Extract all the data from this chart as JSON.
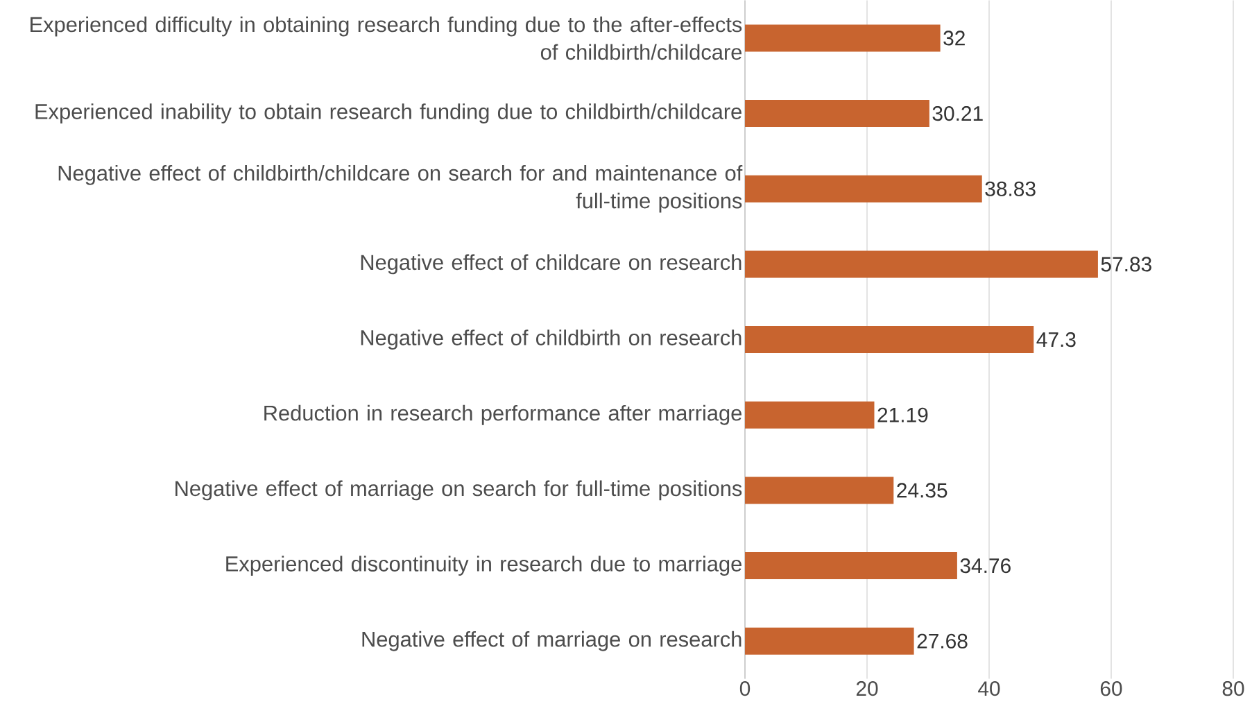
{
  "chart_data": {
    "type": "bar",
    "orientation": "horizontal",
    "categories": [
      "Experienced difficulty in obtaining research funding due to the after-effects of childbirth/childcare",
      "Experienced inability to obtain research funding due to childbirth/childcare",
      "Negative effect of childbirth/childcare on search for and maintenance of full-time positions",
      "Negative effect of childcare on research",
      "Negative effect of childbirth on research",
      "Reduction in research performance after marriage",
      "Negative effect of marriage on search for full-time positions",
      "Experienced discontinuity in research due to marriage",
      "Negative effect of marriage on research"
    ],
    "values": [
      32,
      30.21,
      38.83,
      57.83,
      47.3,
      21.19,
      24.35,
      34.76,
      27.68
    ],
    "color": "#c8642f",
    "data_labels": true,
    "grid": "x",
    "xlim": [
      0,
      80
    ],
    "xticks": [
      0,
      20,
      40,
      60,
      80
    ]
  }
}
